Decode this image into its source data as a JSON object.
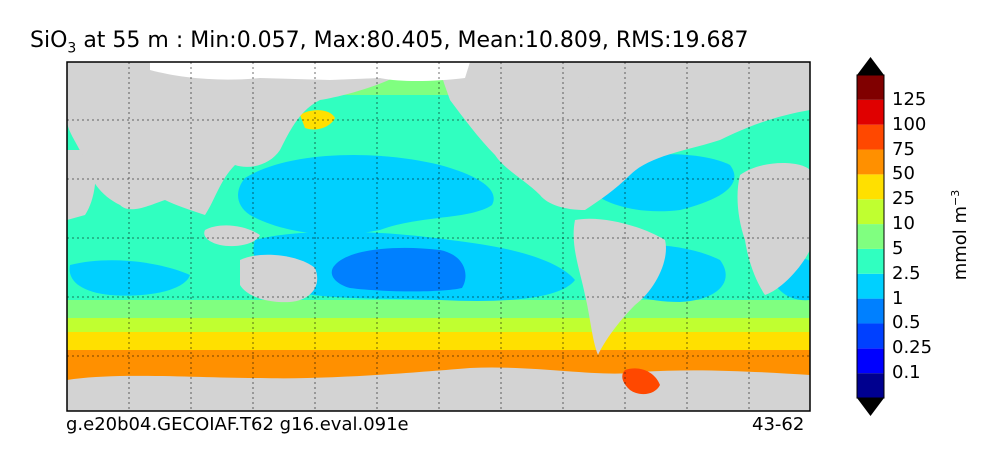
{
  "title": {
    "variable": "SiO",
    "subscript": "3",
    "rest": " at 55 m : Min:0.057, Max:80.405, Mean:10.809, RMS:19.687"
  },
  "footer": {
    "case_name": "g.e20b04.GECOIAF.T62 g16.eval.091e",
    "years": "43-62"
  },
  "colorbar": {
    "unit_main": "mmol m",
    "unit_exp": "−3",
    "levels": [
      "0.1",
      "0.25",
      "0.5",
      "1",
      "2.5",
      "5",
      "10",
      "25",
      "50",
      "75",
      "100",
      "125"
    ],
    "colors": [
      "#00008f",
      "#0000ff",
      "#0040ff",
      "#0080ff",
      "#00d0ff",
      "#30ffc0",
      "#80ff80",
      "#c0ff30",
      "#ffe000",
      "#ff9000",
      "#ff4800",
      "#e00000",
      "#800000"
    ]
  },
  "map": {
    "land_color": "#d3d3d3",
    "ice_color": "#ffffff"
  }
}
